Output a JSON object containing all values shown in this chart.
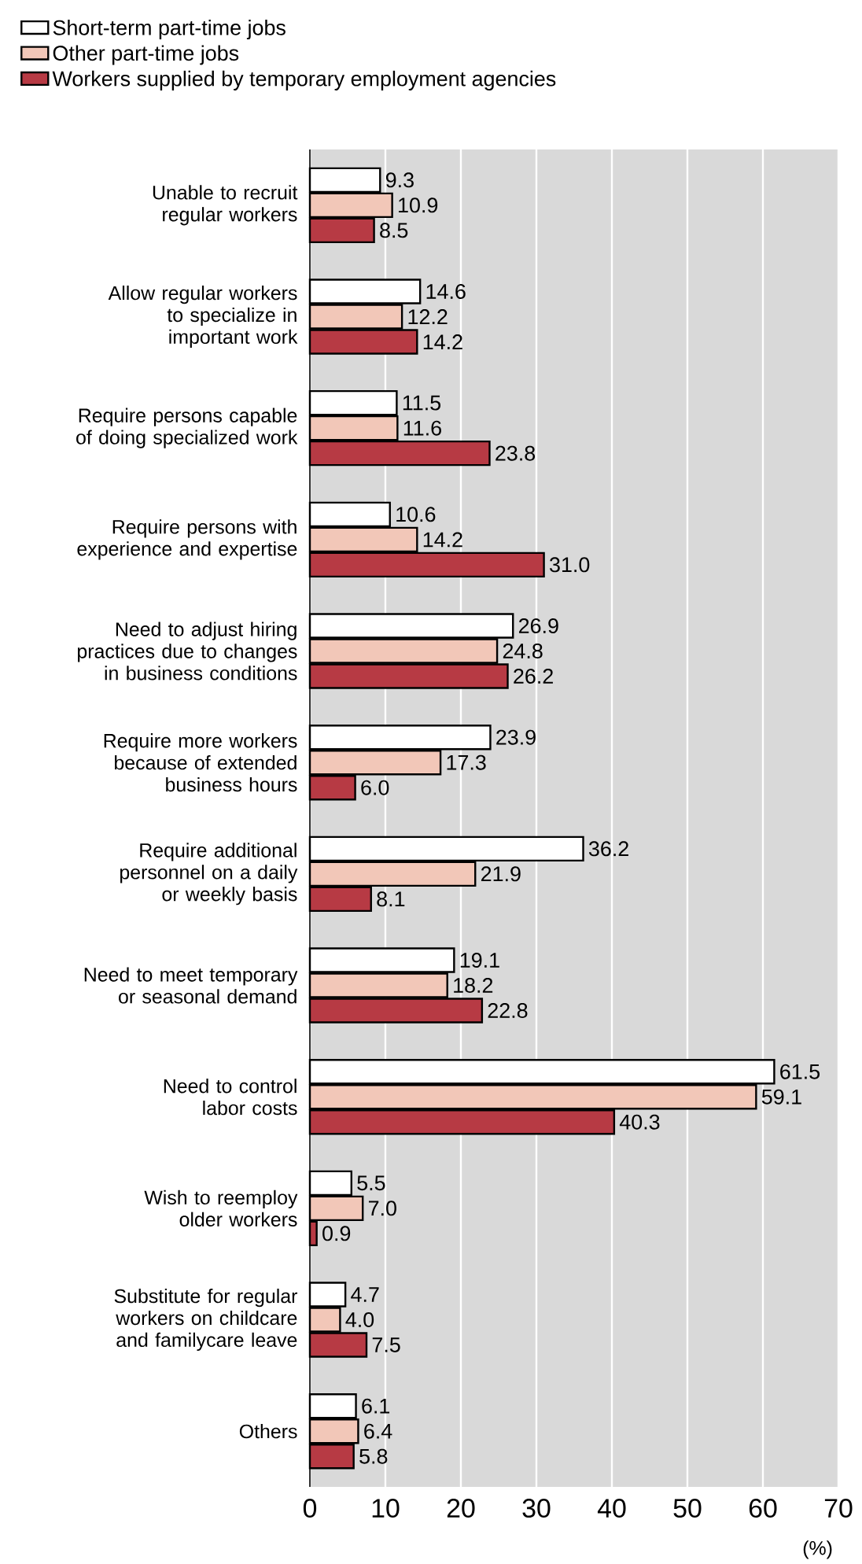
{
  "chart_data": {
    "type": "bar",
    "orientation": "horizontal",
    "xlabel": "(%)",
    "categories": [
      "Unable to recruit regular workers",
      "Allow regular workers to specialize in important work",
      "Require persons capable of doing specialized work",
      "Require persons with experience and expertise",
      "Need to adjust hiring practices due to changes in business conditions",
      "Require more workers because of extended business hours",
      "Require additional personnel on a daily or weekly basis",
      "Need to meet temporary or seasonal demand",
      "Need to control labor costs",
      "Wish to reemploy older workers",
      "Substitute for regular workers on childcare and familycare leave",
      "Others"
    ],
    "series": [
      {
        "name": "Short-term part-time jobs",
        "color": "#ffffff",
        "values": [
          9.3,
          14.6,
          11.5,
          10.6,
          26.9,
          23.9,
          36.2,
          19.1,
          61.5,
          5.5,
          4.7,
          6.1
        ],
        "value_labels": [
          "9.3",
          "14.6",
          "11.5",
          "10.6",
          "26.9",
          "23.9",
          "36.2",
          "19.1",
          "61.5",
          "5.5",
          "4.7",
          "6.1"
        ]
      },
      {
        "name": "Other part-time jobs",
        "color": "#f2c7b8",
        "values": [
          10.9,
          12.2,
          11.6,
          14.2,
          24.8,
          17.3,
          21.9,
          18.2,
          59.1,
          7.0,
          4.0,
          6.4
        ],
        "value_labels": [
          "10.9",
          "12.2",
          "11.6",
          "14.2",
          "24.8",
          "17.3",
          "21.9",
          "18.2",
          "59.1",
          "7.0",
          "4.0",
          "6.4"
        ]
      },
      {
        "name": "Workers supplied by temporary employment agencies",
        "color": "#b73a44",
        "values": [
          8.5,
          14.2,
          23.8,
          31.0,
          26.2,
          6.0,
          8.1,
          22.8,
          40.3,
          0.9,
          7.5,
          5.8
        ],
        "value_labels": [
          "8.5",
          "14.2",
          "23.8",
          "31.0",
          "26.2",
          "6.0",
          "8.1",
          "22.8",
          "40.3",
          "0.9",
          "7.5",
          "5.8"
        ]
      }
    ],
    "xlim": [
      0,
      70
    ],
    "xticks": [
      0,
      10,
      20,
      30,
      40,
      50,
      60,
      70
    ],
    "grid": "x",
    "legend": "top"
  }
}
